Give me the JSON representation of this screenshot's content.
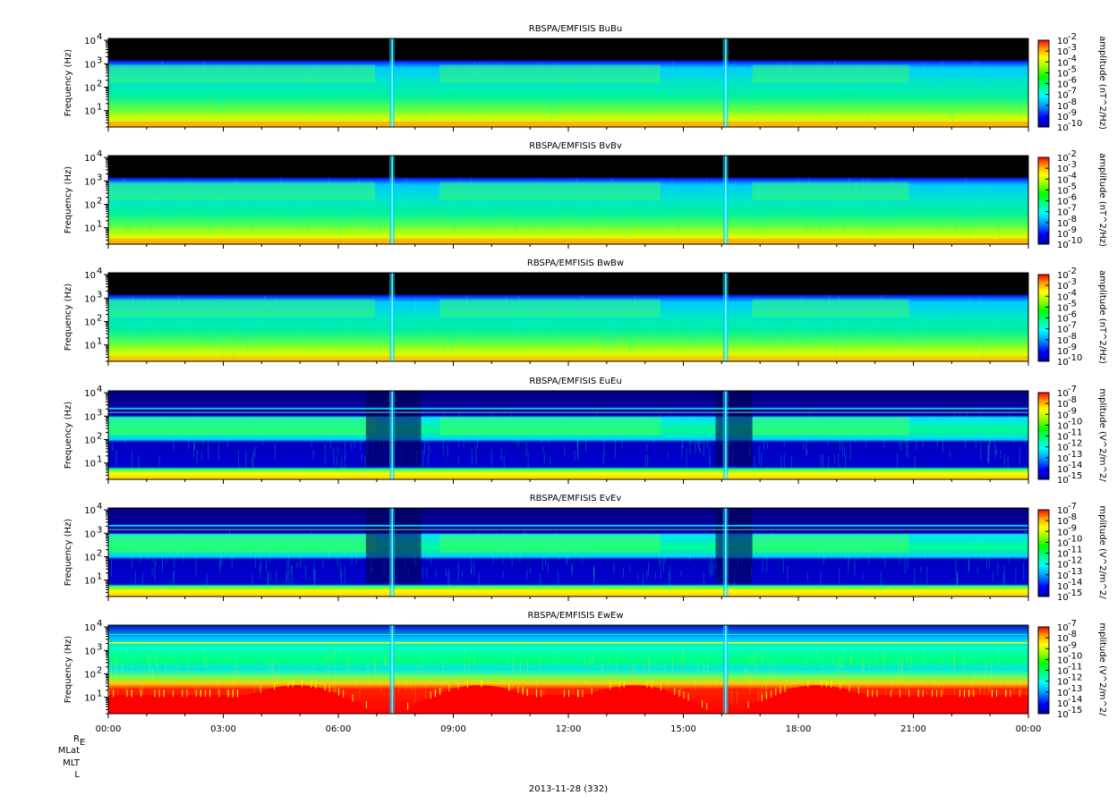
{
  "chart_data": {
    "type": "heatmap",
    "x_ticks": [
      "00:00",
      "03:00",
      "06:00",
      "09:00",
      "12:00",
      "15:00",
      "18:00",
      "21:00",
      "00:00"
    ],
    "x_range_hours": [
      0,
      24
    ],
    "footer_rows": [
      "R",
      "MLat",
      "MLT",
      "L"
    ],
    "footer_subscript": "E",
    "date_label": "2013-11-28 (332)",
    "y_ticks": [
      {
        "base": "10",
        "exp": "1"
      },
      {
        "base": "10",
        "exp": "2"
      },
      {
        "base": "10",
        "exp": "3"
      },
      {
        "base": "10",
        "exp": "4"
      }
    ],
    "y_label": "Frequency (Hz)",
    "y_scale": "log",
    "y_range_hz": [
      2,
      12000
    ],
    "panels": [
      {
        "title": "RBSPA/EMFISIS  BuBu",
        "quantity": "B",
        "cbar_label": "amplitude (nT^2/Hz)",
        "cbar_ticks": [
          {
            "base": "10",
            "exp": "-2"
          },
          {
            "base": "10",
            "exp": "-3"
          },
          {
            "base": "10",
            "exp": "-4"
          },
          {
            "base": "10",
            "exp": "-5"
          },
          {
            "base": "10",
            "exp": "-6"
          },
          {
            "base": "10",
            "exp": "-7"
          },
          {
            "base": "10",
            "exp": "-8"
          },
          {
            "base": "10",
            "exp": "-9"
          },
          {
            "base": "10",
            "exp": "-10"
          }
        ],
        "cbar_range_log10": [
          -10,
          -2
        ]
      },
      {
        "title": "RBSPA/EMFISIS  BvBv",
        "quantity": "B",
        "cbar_label": "amplitude (nT^2/Hz)",
        "cbar_ticks": [
          {
            "base": "10",
            "exp": "-2"
          },
          {
            "base": "10",
            "exp": "-3"
          },
          {
            "base": "10",
            "exp": "-4"
          },
          {
            "base": "10",
            "exp": "-5"
          },
          {
            "base": "10",
            "exp": "-6"
          },
          {
            "base": "10",
            "exp": "-7"
          },
          {
            "base": "10",
            "exp": "-8"
          },
          {
            "base": "10",
            "exp": "-9"
          },
          {
            "base": "10",
            "exp": "-10"
          }
        ],
        "cbar_range_log10": [
          -10,
          -2
        ]
      },
      {
        "title": "RBSPA/EMFISIS  BwBw",
        "quantity": "B",
        "cbar_label": "amplitude (nT^2/Hz)",
        "cbar_ticks": [
          {
            "base": "10",
            "exp": "-2"
          },
          {
            "base": "10",
            "exp": "-3"
          },
          {
            "base": "10",
            "exp": "-4"
          },
          {
            "base": "10",
            "exp": "-5"
          },
          {
            "base": "10",
            "exp": "-6"
          },
          {
            "base": "10",
            "exp": "-7"
          },
          {
            "base": "10",
            "exp": "-8"
          },
          {
            "base": "10",
            "exp": "-9"
          },
          {
            "base": "10",
            "exp": "-10"
          }
        ],
        "cbar_range_log10": [
          -10,
          -2
        ]
      },
      {
        "title": "RBSPA/EMFISIS  EuEu",
        "quantity": "E",
        "cbar_label": "mplitude (V^2/m^2/",
        "cbar_ticks": [
          {
            "base": "10",
            "exp": "-7"
          },
          {
            "base": "10",
            "exp": "-8"
          },
          {
            "base": "10",
            "exp": "-9"
          },
          {
            "base": "10",
            "exp": "-10"
          },
          {
            "base": "10",
            "exp": "-11"
          },
          {
            "base": "10",
            "exp": "-12"
          },
          {
            "base": "10",
            "exp": "-13"
          },
          {
            "base": "10",
            "exp": "-14"
          },
          {
            "base": "10",
            "exp": "-15"
          }
        ],
        "cbar_range_log10": [
          -15,
          -7
        ]
      },
      {
        "title": "RBSPA/EMFISIS  EvEv",
        "quantity": "E",
        "cbar_label": "mplitude (V^2/m^2/",
        "cbar_ticks": [
          {
            "base": "10",
            "exp": "-7"
          },
          {
            "base": "10",
            "exp": "-8"
          },
          {
            "base": "10",
            "exp": "-9"
          },
          {
            "base": "10",
            "exp": "-10"
          },
          {
            "base": "10",
            "exp": "-11"
          },
          {
            "base": "10",
            "exp": "-12"
          },
          {
            "base": "10",
            "exp": "-13"
          },
          {
            "base": "10",
            "exp": "-14"
          },
          {
            "base": "10",
            "exp": "-15"
          }
        ],
        "cbar_range_log10": [
          -15,
          -7
        ]
      },
      {
        "title": "RBSPA/EMFISIS  EwEw",
        "quantity": "Ew",
        "cbar_label": "mplitude (V^2/m^2/",
        "cbar_ticks": [
          {
            "base": "10",
            "exp": "-7"
          },
          {
            "base": "10",
            "exp": "-8"
          },
          {
            "base": "10",
            "exp": "-9"
          },
          {
            "base": "10",
            "exp": "-10"
          },
          {
            "base": "10",
            "exp": "-11"
          },
          {
            "base": "10",
            "exp": "-12"
          },
          {
            "base": "10",
            "exp": "-13"
          },
          {
            "base": "10",
            "exp": "-14"
          },
          {
            "base": "10",
            "exp": "-15"
          }
        ],
        "cbar_range_log10": [
          -15,
          -7
        ]
      }
    ],
    "colormap": [
      "#0000a0",
      "#0000ff",
      "#00a0ff",
      "#00ffff",
      "#00ff80",
      "#00ff00",
      "#a0ff00",
      "#ffff00",
      "#ffa000",
      "#ff0000"
    ],
    "no_data_color": "#000000"
  }
}
